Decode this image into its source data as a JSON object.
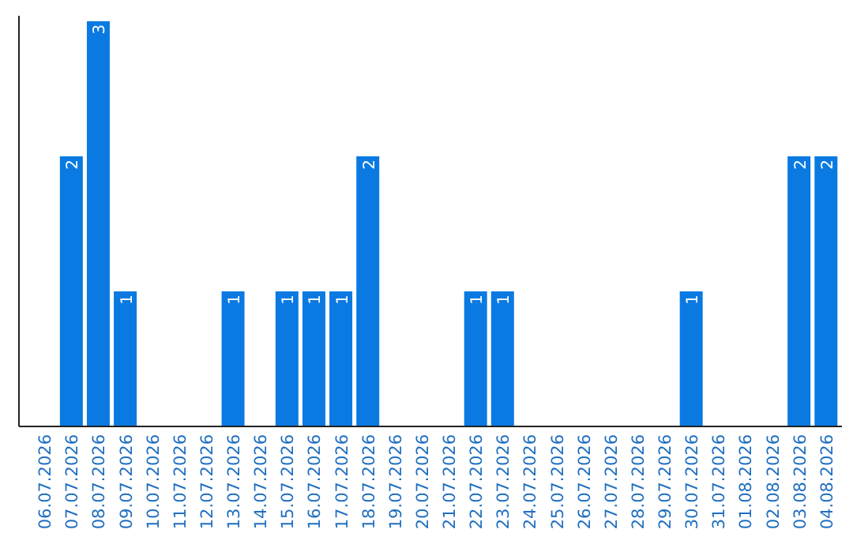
{
  "chart_data": {
    "type": "bar",
    "categories": [
      "06.07.2026",
      "07.07.2026",
      "08.07.2026",
      "09.07.2026",
      "10.07.2026",
      "11.07.2026",
      "12.07.2026",
      "13.07.2026",
      "14.07.2026",
      "15.07.2026",
      "16.07.2026",
      "17.07.2026",
      "18.07.2026",
      "19.07.2026",
      "20.07.2026",
      "21.07.2026",
      "22.07.2026",
      "23.07.2026",
      "24.07.2026",
      "25.07.2026",
      "26.07.2026",
      "27.07.2026",
      "28.07.2026",
      "29.07.2026",
      "30.07.2026",
      "31.07.2026",
      "01.08.2026",
      "02.08.2026",
      "03.08.2026",
      "04.08.2026"
    ],
    "values": [
      0,
      2,
      3,
      1,
      0,
      0,
      0,
      1,
      0,
      1,
      1,
      1,
      2,
      0,
      0,
      0,
      1,
      1,
      0,
      0,
      0,
      0,
      0,
      0,
      1,
      0,
      0,
      0,
      2,
      2
    ],
    "value_labels": [
      null,
      "2",
      "3",
      "1",
      null,
      null,
      null,
      "1",
      null,
      "1",
      "1",
      "1",
      "2",
      null,
      null,
      null,
      "1",
      "1",
      null,
      null,
      null,
      null,
      null,
      null,
      "1",
      null,
      null,
      null,
      "2",
      "2"
    ],
    "color": "#0a7ae2",
    "ylim": [
      0,
      3.04
    ],
    "tick_labels": "x"
  }
}
